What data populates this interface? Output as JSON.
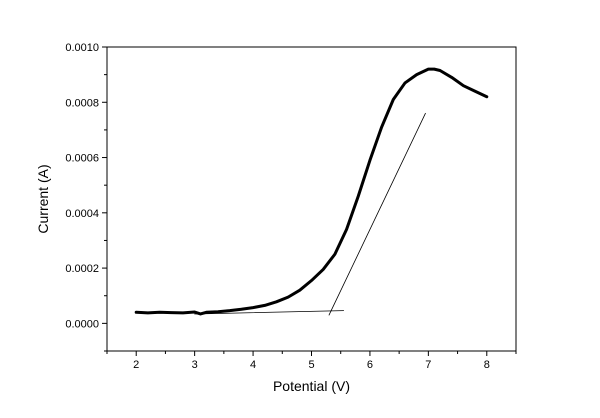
{
  "chart_data": {
    "type": "line",
    "title": "",
    "xlabel": "Potential (V)",
    "ylabel": "Current (A)",
    "xlim": [
      1.5,
      8.5
    ],
    "ylim": [
      -0.0001,
      0.001
    ],
    "xticks": [
      2,
      3,
      4,
      5,
      6,
      7,
      8
    ],
    "xtick_labels": [
      "2",
      "3",
      "4",
      "5",
      "6",
      "7",
      "8"
    ],
    "yticks": [
      0.0,
      0.0002,
      0.0004,
      0.0006,
      0.0008,
      0.001
    ],
    "ytick_labels": [
      "0.0000",
      "0.0002",
      "0.0004",
      "0.0006",
      "0.0008",
      "0.0010"
    ],
    "grid": false,
    "legend": "none",
    "series": [
      {
        "color": "#000000",
        "style": "thick",
        "x": [
          2.0,
          2.2,
          2.4,
          2.6,
          2.8,
          3.0,
          3.1,
          3.2,
          3.4,
          3.6,
          3.8,
          4.0,
          4.2,
          4.4,
          4.6,
          4.8,
          5.0,
          5.2,
          5.4,
          5.6,
          5.8,
          6.0,
          6.2,
          6.4,
          6.6,
          6.8,
          7.0,
          7.1,
          7.2,
          7.4,
          7.6,
          7.8,
          8.0
        ],
        "y": [
          4e-05,
          3.8e-05,
          4e-05,
          3.9e-05,
          3.8e-05,
          4.1e-05,
          3.4e-05,
          4e-05,
          4.2e-05,
          4.6e-05,
          5.1e-05,
          5.7e-05,
          6.5e-05,
          7.8e-05,
          9.5e-05,
          0.00012,
          0.000155,
          0.000195,
          0.00025,
          0.00034,
          0.00046,
          0.00059,
          0.00071,
          0.00081,
          0.00087,
          0.0009,
          0.00092,
          0.00092,
          0.000915,
          0.00089,
          0.00086,
          0.00084,
          0.00082
        ]
      },
      {
        "color": "#000000",
        "style": "thin",
        "x": [
          3.0,
          5.55
        ],
        "y": [
          3.4e-05,
          4.6e-05
        ]
      },
      {
        "color": "#000000",
        "style": "thin",
        "x": [
          5.3,
          6.95
        ],
        "y": [
          3e-05,
          0.00076
        ]
      }
    ]
  }
}
